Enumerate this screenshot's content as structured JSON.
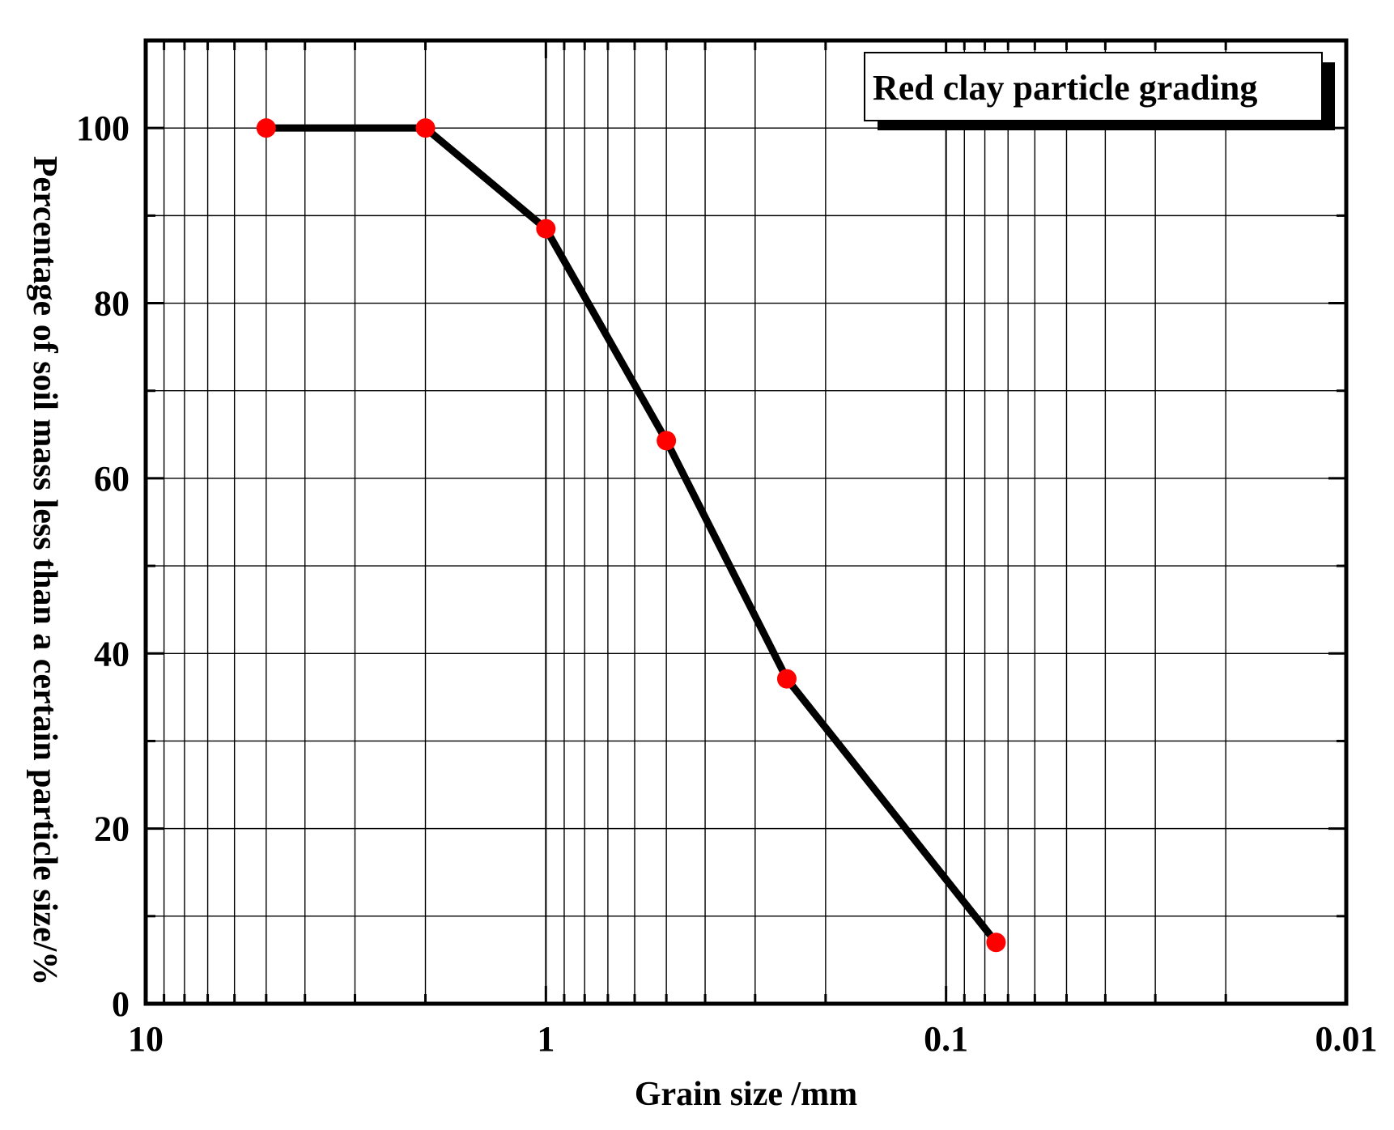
{
  "chart_data": {
    "type": "line",
    "title": "",
    "xlabel": "Grain size /mm",
    "ylabel": "Percentage of soil mass less than a certain particle size/%",
    "x_scale": "log",
    "x_reversed": true,
    "xlim": [
      10,
      0.01
    ],
    "ylim": [
      0,
      110
    ],
    "x_ticks": [
      10,
      1,
      0.1,
      0.01
    ],
    "x_tick_labels": [
      "10",
      "1",
      "0.1",
      "0.01"
    ],
    "y_ticks": [
      0,
      20,
      40,
      60,
      80,
      100
    ],
    "y_tick_labels": [
      "0",
      "20",
      "40",
      "60",
      "80",
      "100"
    ],
    "grid": true,
    "legend_position": "top-right",
    "series": [
      {
        "name": "Red clay particle grading",
        "color": "#000000",
        "marker_color": "#ff0000",
        "x": [
          5,
          2,
          1,
          0.5,
          0.25,
          0.075
        ],
        "y": [
          100,
          100,
          88.5,
          64.3,
          37.1,
          7
        ]
      }
    ]
  }
}
